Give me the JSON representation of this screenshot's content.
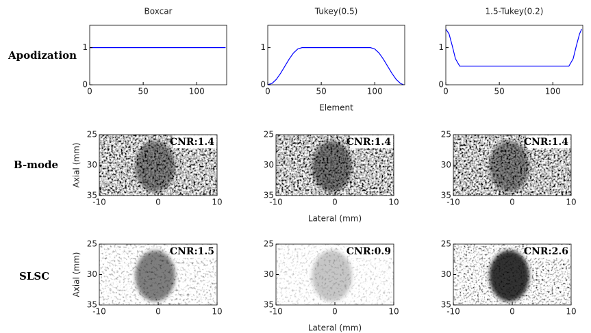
{
  "row_labels": [
    "Apodization",
    "B-mode",
    "SLSC"
  ],
  "chart_data": [
    {
      "type": "line",
      "title": "Boxcar",
      "x": [
        0,
        127
      ],
      "values": [
        1,
        1
      ],
      "color": "#0000ff",
      "xlim": [
        0,
        128
      ],
      "ylim": [
        0,
        1.6
      ],
      "xticks": [
        0,
        50,
        100
      ],
      "yticks": [
        0,
        1
      ]
    },
    {
      "type": "line",
      "title": "Tukey(0.5)",
      "xlabel": "Element",
      "x": [
        0,
        4,
        8,
        12,
        16,
        20,
        24,
        28,
        32,
        96,
        100,
        104,
        108,
        112,
        116,
        120,
        124,
        127
      ],
      "values": [
        0,
        0.038,
        0.146,
        0.309,
        0.5,
        0.691,
        0.854,
        0.962,
        1,
        1,
        0.962,
        0.854,
        0.691,
        0.5,
        0.309,
        0.146,
        0.038,
        0
      ],
      "color": "#0000ff",
      "xlim": [
        0,
        128
      ],
      "ylim": [
        0,
        1.6
      ],
      "xticks": [
        0,
        50,
        100
      ],
      "yticks": [
        0,
        1
      ]
    },
    {
      "type": "line",
      "title": "1.5-Tukey(0.2)",
      "x": [
        0,
        3,
        6,
        9,
        13,
        115,
        119,
        122,
        125,
        127
      ],
      "values": [
        1.5,
        1.37,
        1.05,
        0.7,
        0.5,
        0.5,
        0.7,
        1.05,
        1.37,
        1.5
      ],
      "color": "#0000ff",
      "xlim": [
        0,
        128
      ],
      "ylim": [
        0,
        1.6
      ],
      "xticks": [
        0,
        50,
        100
      ],
      "yticks": [
        0,
        1
      ]
    },
    {
      "type": "image",
      "annotation": "CNR:1.4",
      "ylabel": "Axial (mm)",
      "xlim": [
        -10,
        10
      ],
      "ylim": [
        35,
        25
      ],
      "xticks": [
        -10,
        0,
        10
      ],
      "yticks": [
        25,
        30,
        35
      ]
    },
    {
      "type": "image",
      "annotation": "CNR:1.4",
      "xlabel": "Lateral (mm)",
      "xlim": [
        -10,
        10
      ],
      "ylim": [
        35,
        25
      ],
      "xticks": [
        -10,
        0,
        10
      ],
      "yticks": [
        25,
        30,
        35
      ]
    },
    {
      "type": "image",
      "annotation": "CNR:1.4",
      "xlim": [
        -10,
        10
      ],
      "ylim": [
        35,
        25
      ],
      "xticks": [
        -10,
        0,
        10
      ],
      "yticks": [
        25,
        30,
        35
      ]
    },
    {
      "type": "image",
      "annotation": "CNR:1.5",
      "ylabel": "Axial (mm)",
      "xlim": [
        -10,
        10
      ],
      "ylim": [
        35,
        25
      ],
      "xticks": [
        -10,
        0,
        10
      ],
      "yticks": [
        25,
        30,
        35
      ]
    },
    {
      "type": "image",
      "annotation": "CNR:0.9",
      "xlabel": "Lateral (mm)",
      "xlim": [
        -10,
        10
      ],
      "ylim": [
        35,
        25
      ],
      "xticks": [
        -10,
        0,
        10
      ],
      "yticks": [
        25,
        30,
        35
      ]
    },
    {
      "type": "image",
      "annotation": "CNR:2.6",
      "xlim": [
        -10,
        10
      ],
      "ylim": [
        35,
        25
      ],
      "xticks": [
        -10,
        0,
        10
      ],
      "yticks": [
        25,
        30,
        35
      ]
    }
  ]
}
